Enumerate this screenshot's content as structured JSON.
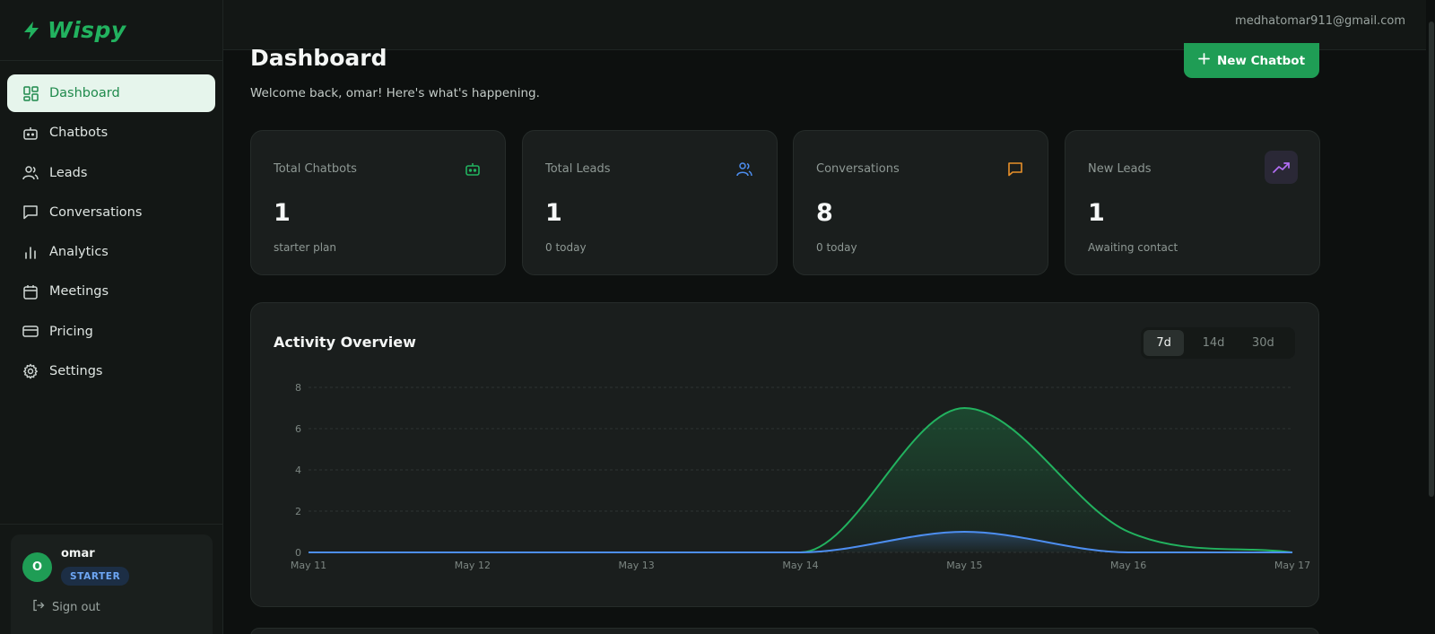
{
  "brand": {
    "name": "Wispy"
  },
  "nav": [
    {
      "label": "Dashboard",
      "icon": "dashboard-icon",
      "active": true
    },
    {
      "label": "Chatbots",
      "icon": "bot-icon"
    },
    {
      "label": "Leads",
      "icon": "users-icon"
    },
    {
      "label": "Conversations",
      "icon": "message-icon"
    },
    {
      "label": "Analytics",
      "icon": "bar-chart-icon"
    },
    {
      "label": "Meetings",
      "icon": "calendar-icon"
    },
    {
      "label": "Pricing",
      "icon": "credit-card-icon"
    },
    {
      "label": "Settings",
      "icon": "gear-icon"
    }
  ],
  "user": {
    "initial": "O",
    "name": "omar",
    "plan": "STARTER",
    "signout": "Sign out",
    "email": "medhatomar911@gmail.com"
  },
  "header": {
    "title": "Dashboard",
    "subtitle": "Welcome back, omar! Here's what's happening.",
    "new_button": "New Chatbot"
  },
  "stats": [
    {
      "label": "Total Chatbots",
      "value": "1",
      "sub": "starter plan",
      "icon": "bot-icon",
      "color": "#22b25f"
    },
    {
      "label": "Total Leads",
      "value": "1",
      "sub": "0 today",
      "icon": "users-icon",
      "color": "#4d8ef0"
    },
    {
      "label": "Conversations",
      "value": "8",
      "sub": "0 today",
      "icon": "message-icon",
      "color": "#e8902a"
    },
    {
      "label": "New Leads",
      "value": "1",
      "sub": "Awaiting contact",
      "icon": "trending-up-icon",
      "color": "#b36ef5"
    }
  ],
  "activity": {
    "title": "Activity Overview",
    "ranges": [
      {
        "label": "7d",
        "active": true
      },
      {
        "label": "14d"
      },
      {
        "label": "30d"
      }
    ]
  },
  "chart_data": {
    "type": "area",
    "categories": [
      "May 11",
      "May 12",
      "May 13",
      "May 14",
      "May 15",
      "May 16",
      "May 17"
    ],
    "series": [
      {
        "values": [
          0,
          0,
          0,
          0,
          7,
          1,
          0
        ],
        "color": "#22b25f"
      },
      {
        "values": [
          0,
          0,
          0,
          0,
          1,
          0,
          0
        ],
        "color": "#4d8ef0"
      }
    ],
    "yticks": [
      0,
      2,
      4,
      6,
      8
    ],
    "ylim": [
      0,
      8
    ],
    "grid": true
  }
}
